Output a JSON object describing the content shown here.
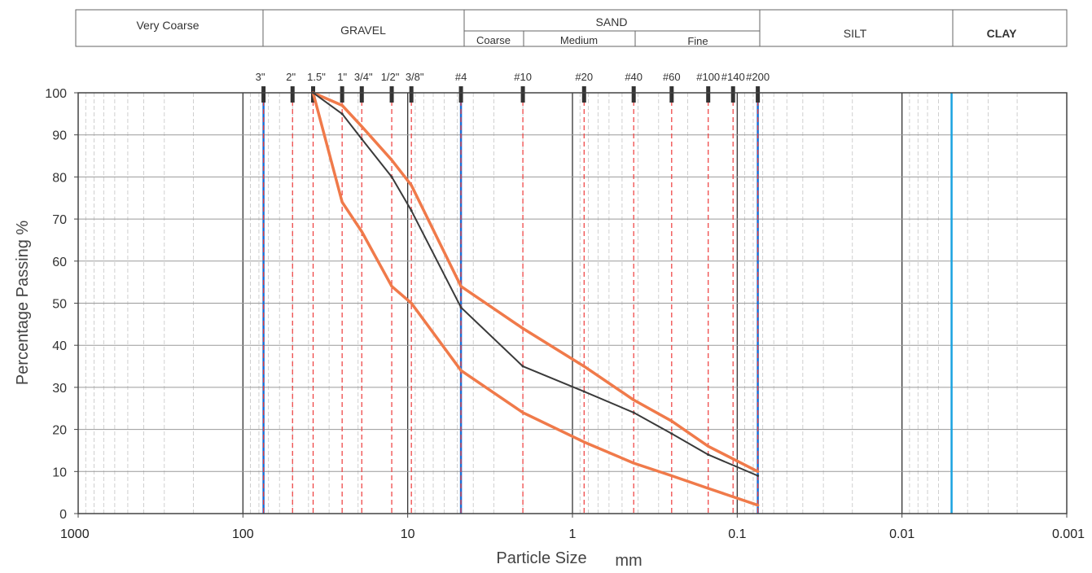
{
  "header": {
    "very_coarse": "Very Coarse",
    "gravel": "GRAVEL",
    "sand": "SAND",
    "sand_coarse": "Coarse",
    "sand_medium": "Medium",
    "sand_fine": "Fine",
    "silt": "SILT",
    "clay": "CLAY"
  },
  "chart_data": {
    "type": "line",
    "title": "",
    "xlabel": "Particle Size",
    "xlabel_unit": "mm",
    "ylabel": "Percentage Passing  %",
    "x_scale": "log",
    "x_reversed": true,
    "xlim": [
      1000,
      0.001
    ],
    "ylim": [
      0,
      100
    ],
    "x_tick_labels": [
      {
        "value": 1000,
        "label": "1000"
      },
      {
        "value": 100,
        "label": "100"
      },
      {
        "value": 10,
        "label": "10"
      },
      {
        "value": 1,
        "label": "1"
      },
      {
        "value": 0.1,
        "label": "0.1"
      },
      {
        "value": 0.01,
        "label": "0.01"
      },
      {
        "value": 0.001,
        "label": "0.001"
      }
    ],
    "y_ticks": [
      0,
      10,
      20,
      30,
      40,
      50,
      60,
      70,
      80,
      90,
      100
    ],
    "grid": true,
    "sieves": [
      {
        "label": "3\"",
        "size": 75
      },
      {
        "label": "2\"",
        "size": 50
      },
      {
        "label": "1.5\"",
        "size": 37.5
      },
      {
        "label": "1\"",
        "size": 25
      },
      {
        "label": "3/4\"",
        "size": 19
      },
      {
        "label": "1/2\"",
        "size": 12.5
      },
      {
        "label": "3/8\"",
        "size": 9.5
      },
      {
        "label": "#4",
        "size": 4.75
      },
      {
        "label": "#10",
        "size": 2.0
      },
      {
        "label": "#20",
        "size": 0.85
      },
      {
        "label": "#40",
        "size": 0.425
      },
      {
        "label": "#60",
        "size": 0.25
      },
      {
        "label": "#100",
        "size": 0.15
      },
      {
        "label": "#140",
        "size": 0.106
      },
      {
        "label": "#200",
        "size": 0.075
      }
    ],
    "boundaries": [
      {
        "size": 75,
        "color": "#1a6fd6"
      },
      {
        "size": 4.75,
        "color": "#1a6fd6"
      },
      {
        "size": 0.075,
        "color": "#1a6fd6"
      },
      {
        "size": 0.005,
        "color": "#1aa3e0"
      }
    ],
    "series": [
      {
        "color": "#f07a4a",
        "x": [
          37.5,
          25,
          19,
          12.5,
          9.5,
          4.75,
          2.0,
          0.85,
          0.425,
          0.25,
          0.15,
          0.075
        ],
        "y": [
          100,
          74,
          67,
          54,
          50,
          34,
          24,
          17,
          12,
          9,
          6,
          2
        ]
      },
      {
        "color": "#f07a4a",
        "x": [
          37.5,
          25,
          19,
          12.5,
          9.5,
          4.75,
          2.0,
          0.85,
          0.425,
          0.25,
          0.15,
          0.075
        ],
        "y": [
          100,
          97,
          92,
          84,
          78,
          54,
          44,
          35,
          27,
          22,
          16,
          10
        ]
      },
      {
        "color": "#3a3a3a",
        "x": [
          37.5,
          25,
          19,
          12.5,
          9.5,
          4.75,
          2.0,
          0.85,
          0.425,
          0.25,
          0.15,
          0.075
        ],
        "y": [
          100,
          95,
          89,
          80,
          72,
          49,
          35,
          29,
          24,
          19,
          14,
          9
        ]
      }
    ]
  }
}
